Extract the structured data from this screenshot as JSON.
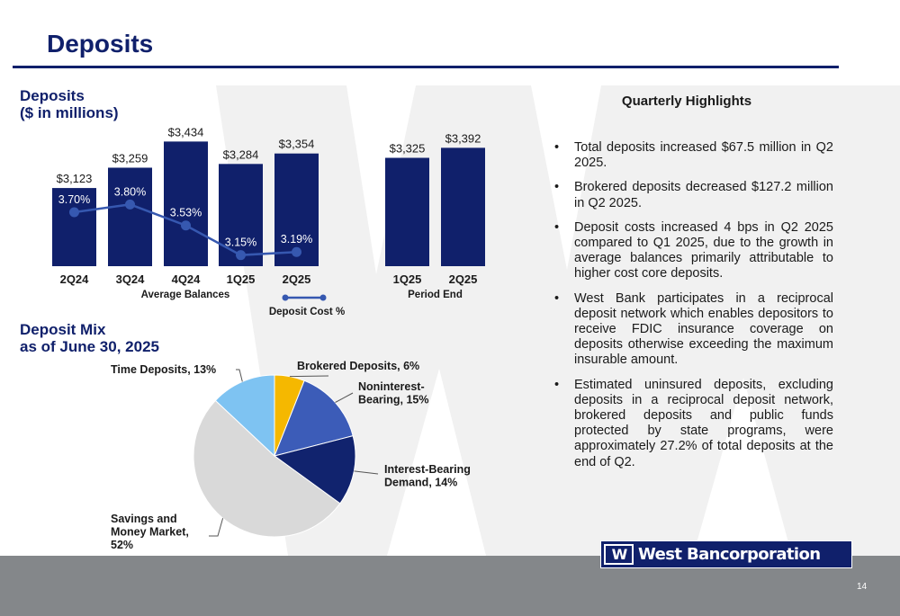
{
  "page": {
    "title": "Deposits",
    "page_number": "14",
    "logo_mark": "W",
    "logo_text": "West Bancorporation"
  },
  "colors": {
    "navy": "#10206b",
    "line": "#3658b0",
    "watermark": "#e6e6e6",
    "footer": "#84878a"
  },
  "deposits_section": {
    "title_line1": "Deposits",
    "title_line2": "($ in millions)"
  },
  "mix_section": {
    "title_line1": "Deposit Mix",
    "title_line2": "as of June 30, 2025"
  },
  "highlights": {
    "title": "Quarterly Highlights",
    "items": [
      "Total deposits increased $67.5 million in Q2 2025.",
      "Brokered deposits decreased $127.2 million in Q2 2025.",
      "Deposit costs increased 4 bps in Q2 2025 compared to Q1 2025, due to the growth in average balances primarily attributable to higher cost core deposits.",
      "West Bank participates in a reciprocal deposit network which enables depositors to receive FDIC insurance coverage on deposits otherwise exceeding the maximum insurable amount.",
      "Estimated uninsured deposits, excluding deposits in a reciprocal deposit network, brokered deposits and public funds protected by state programs, were approximately 27.2% of total deposits at the end of Q2."
    ]
  },
  "chart_data": [
    {
      "type": "bar",
      "subtype": "bar-with-line",
      "groups": [
        {
          "name": "Average Balances",
          "categories": [
            "2Q24",
            "3Q24",
            "4Q24",
            "1Q25",
            "2Q25"
          ],
          "values": [
            3123,
            3259,
            3434,
            3284,
            3354
          ],
          "labels": [
            "$3,123",
            "$3,259",
            "$3,434",
            "$3,284",
            "$3,354"
          ]
        },
        {
          "name": "Period End",
          "categories": [
            "1Q25",
            "2Q25"
          ],
          "values": [
            3325,
            3392
          ],
          "labels": [
            "$3,325",
            "$3,392"
          ]
        }
      ],
      "line_series": {
        "name": "Deposit Cost %",
        "legend_label": "Deposit Cost  %",
        "categories": [
          "2Q24",
          "3Q24",
          "4Q24",
          "1Q25",
          "2Q25"
        ],
        "values": [
          3.7,
          3.8,
          3.53,
          3.15,
          3.19
        ],
        "labels": [
          "3.70%",
          "3.80%",
          "3.53%",
          "3.15%",
          "3.19%"
        ]
      },
      "bar_color": "#10206b",
      "line_color": "#3658b0",
      "grid": false,
      "legend": "bottom-center"
    },
    {
      "type": "pie",
      "slices": [
        {
          "name": "Brokered Deposits, 6%",
          "value": 6,
          "color": "#f5b800"
        },
        {
          "name": "Noninterest-Bearing, 15%",
          "value": 15,
          "color": "#3c5cb8"
        },
        {
          "name": "Interest-Bearing Demand, 14%",
          "value": 14,
          "color": "#11236e"
        },
        {
          "name": "Savings and Money Market, 52%",
          "value": 52,
          "color": "#d9d9d9"
        },
        {
          "name": "Time Deposits, 13%",
          "value": 13,
          "color": "#7ec3f2"
        }
      ],
      "label_lines": [
        [
          "Brokered Deposits, 6%"
        ],
        [
          "Noninterest-",
          "Bearing, 15%"
        ],
        [
          "Interest-Bearing",
          "Demand, 14%"
        ],
        [
          "Savings and",
          "Money Market,",
          "52%"
        ],
        [
          "Time Deposits, 13%"
        ]
      ],
      "start": "top",
      "direction": "clockwise"
    }
  ]
}
